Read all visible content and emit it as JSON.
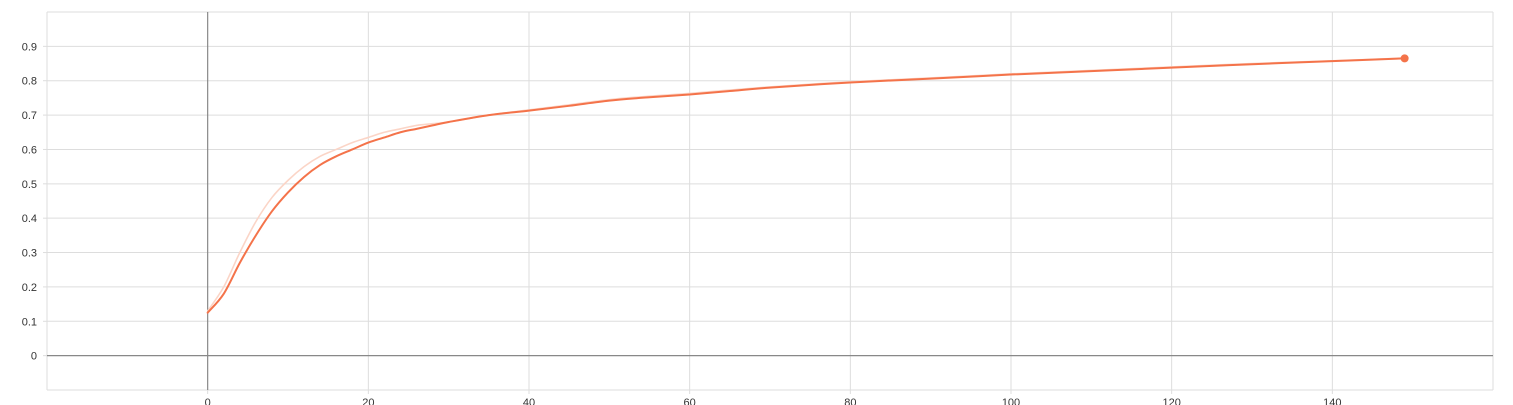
{
  "chart_data": {
    "type": "line",
    "title": "",
    "xlabel": "",
    "ylabel": "",
    "xlim": [
      -20,
      160
    ],
    "ylim": [
      -0.1,
      1.0
    ],
    "x_ticks": [
      0,
      20,
      40,
      60,
      80,
      100,
      120,
      140
    ],
    "y_ticks": [
      0,
      0.1,
      0.2,
      0.3,
      0.4,
      0.5,
      0.6,
      0.7,
      0.8,
      0.9
    ],
    "x_tick_labels": [
      "0",
      "20",
      "40",
      "60",
      "80",
      "100",
      "120",
      "140"
    ],
    "y_tick_labels": [
      "0",
      "0.1",
      "0.2",
      "0.3",
      "0.4",
      "0.5",
      "0.6",
      "0.7",
      "0.8",
      "0.9"
    ],
    "grid": true,
    "colors": {
      "smoothed": "#f4734a",
      "raw": "#fbd5c7",
      "grid": "#dddddd",
      "axis": "#888888"
    },
    "series": [
      {
        "kind": "raw",
        "x": [
          0,
          2,
          4,
          6,
          8,
          10,
          12,
          14,
          16,
          18,
          20,
          22,
          24,
          26,
          28,
          30,
          35,
          40,
          45,
          50,
          55,
          60,
          65,
          70,
          80,
          90,
          100,
          110,
          120,
          130,
          140,
          149
        ],
        "y": [
          0.13,
          0.2,
          0.3,
          0.39,
          0.46,
          0.51,
          0.55,
          0.58,
          0.6,
          0.62,
          0.635,
          0.65,
          0.66,
          0.67,
          0.675,
          0.68,
          0.7,
          0.715,
          0.73,
          0.745,
          0.755,
          0.763,
          0.773,
          0.782,
          0.797,
          0.808,
          0.82,
          0.83,
          0.84,
          0.85,
          0.858,
          0.866
        ]
      },
      {
        "kind": "smoothed",
        "x": [
          0,
          2,
          4,
          6,
          8,
          10,
          12,
          14,
          16,
          18,
          20,
          22,
          24,
          26,
          28,
          30,
          35,
          40,
          45,
          50,
          55,
          60,
          65,
          70,
          80,
          90,
          100,
          110,
          120,
          130,
          140,
          149
        ],
        "y": [
          0.125,
          0.18,
          0.27,
          0.35,
          0.42,
          0.475,
          0.52,
          0.555,
          0.58,
          0.6,
          0.62,
          0.635,
          0.65,
          0.66,
          0.67,
          0.68,
          0.7,
          0.713,
          0.727,
          0.742,
          0.752,
          0.76,
          0.77,
          0.78,
          0.795,
          0.806,
          0.818,
          0.828,
          0.838,
          0.848,
          0.857,
          0.865
        ]
      }
    ]
  }
}
